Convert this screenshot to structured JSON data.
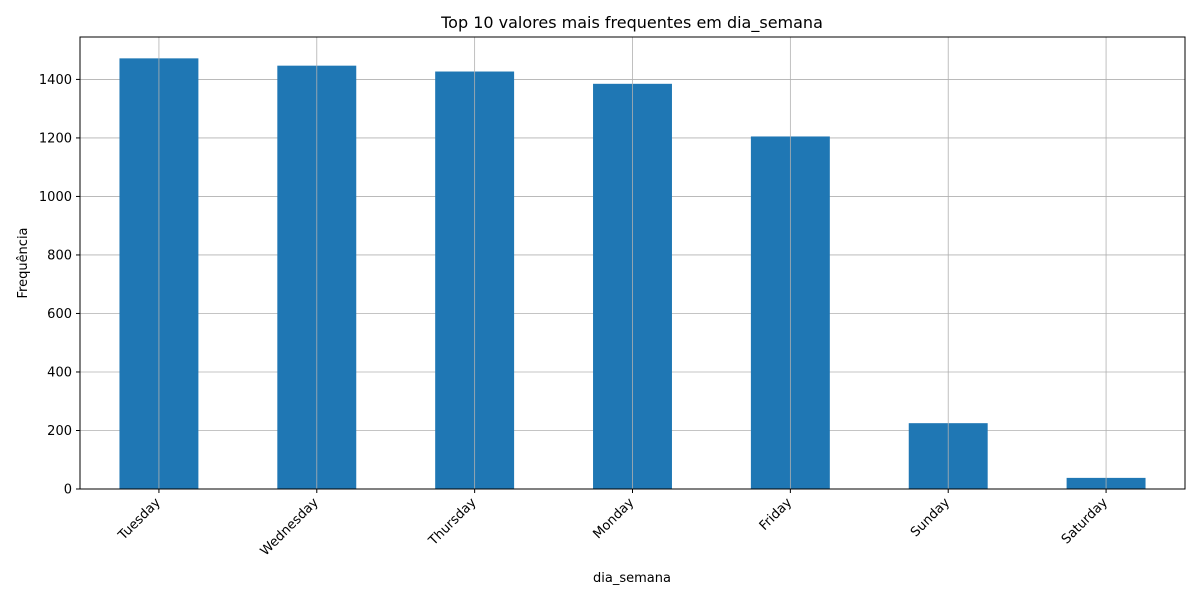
{
  "chart_data": {
    "type": "bar",
    "title": "Top 10 valores mais frequentes em dia_semana",
    "xlabel": "dia_semana",
    "ylabel": "Frequência",
    "categories": [
      "Tuesday",
      "Wednesday",
      "Thursday",
      "Monday",
      "Friday",
      "Sunday",
      "Saturday"
    ],
    "values": [
      1472,
      1447,
      1427,
      1385,
      1205,
      225,
      38
    ],
    "ylim": [
      0,
      1545
    ],
    "yticks": [
      0,
      200,
      400,
      600,
      800,
      1000,
      1200,
      1400
    ],
    "grid": true,
    "bar_color": "#1f77b4",
    "grid_color": "#b0b0b0"
  }
}
